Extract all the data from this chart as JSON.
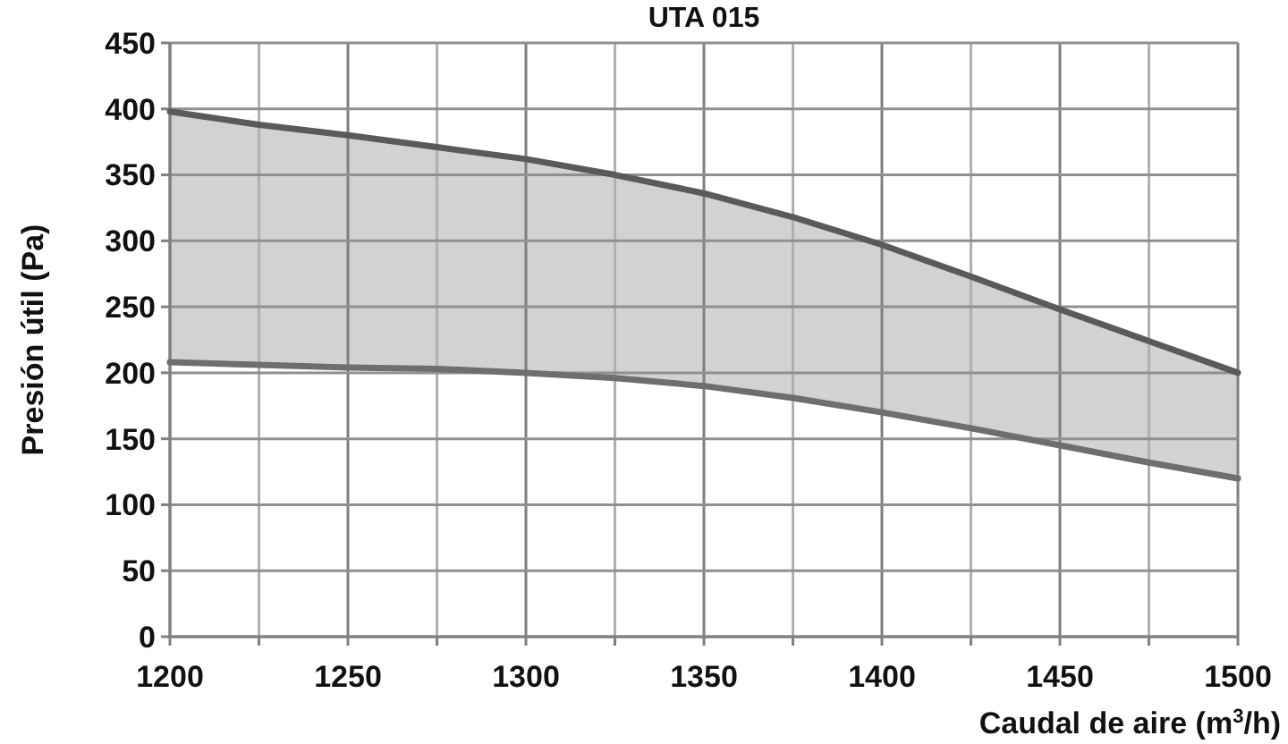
{
  "chart_data": {
    "type": "line",
    "title": "UTA 015",
    "xlabel": "Caudal de aire (m$^{3}$/h)",
    "ylabel": "Presión útil (Pa)",
    "x": [
      1200,
      1225,
      1250,
      1275,
      1300,
      1325,
      1350,
      1375,
      1400,
      1425,
      1450,
      1475,
      1500
    ],
    "series": [
      {
        "color": "#5a5a5a",
        "values": [
          398,
          388,
          380,
          371,
          362,
          350,
          336,
          318,
          297,
          273,
          248,
          224,
          200
        ],
        "lower": [
          208,
          206,
          204,
          203,
          200,
          196,
          190,
          181,
          170,
          158,
          145,
          132,
          120
        ],
        "upper": [
          398,
          388,
          380,
          371,
          362,
          350,
          336,
          318,
          297,
          273,
          248,
          224,
          200
        ]
      },
      {
        "color": "#6e6e6e",
        "values": [
          208,
          206,
          204,
          203,
          200,
          196,
          190,
          181,
          170,
          158,
          145,
          132,
          120
        ]
      }
    ],
    "xlim": [
      1200,
      1500
    ],
    "ylim": [
      0,
      450
    ],
    "xticks": [
      1200,
      {
        "value": 1225,
        "label": null
      },
      1250,
      {
        "value": 1275,
        "label": null
      },
      1300,
      {
        "value": 1325,
        "label": null
      },
      1350,
      {
        "value": 1375,
        "label": null
      },
      1400,
      {
        "value": 1425,
        "label": null
      },
      1450,
      {
        "value": 1475,
        "label": null
      },
      1500
    ],
    "yticks": [
      0,
      50,
      100,
      150,
      200,
      250,
      300,
      350,
      400,
      450
    ],
    "grid": true,
    "marker": "none",
    "line_style": "solid"
  }
}
